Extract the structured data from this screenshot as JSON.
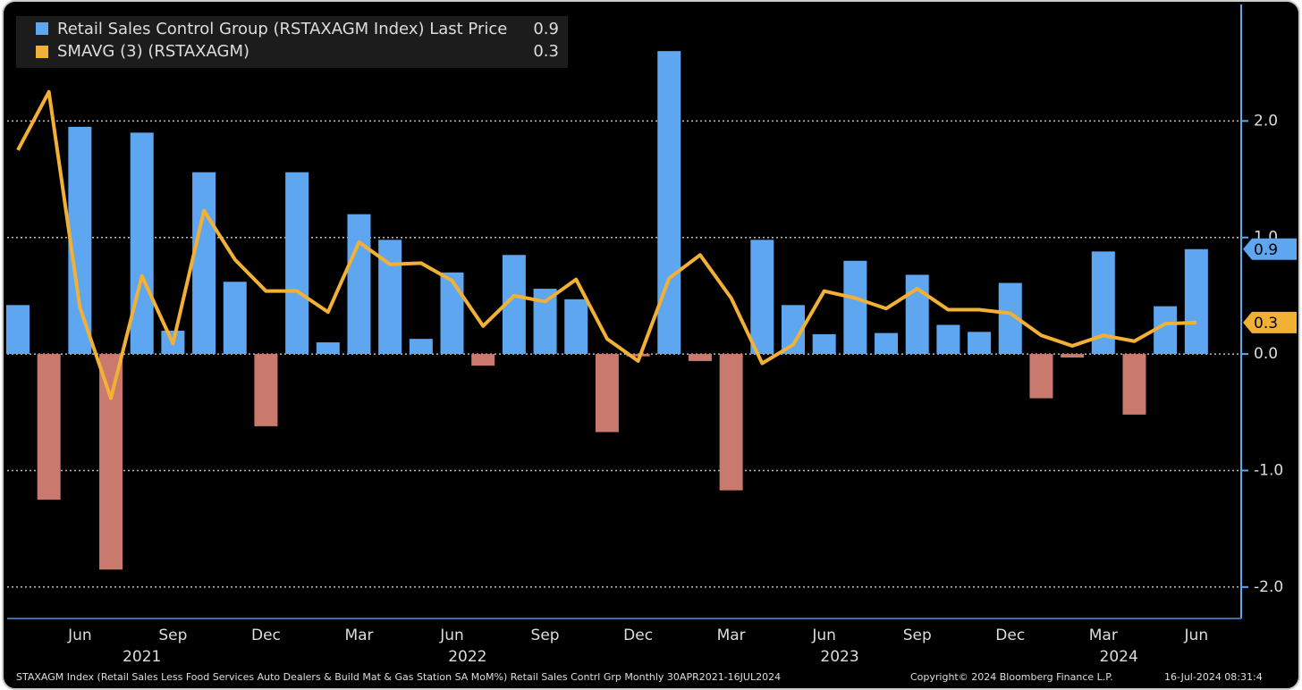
{
  "chart_data": {
    "type": "bar_line",
    "x": [
      "2021-04",
      "2021-05",
      "2021-06",
      "2021-07",
      "2021-08",
      "2021-09",
      "2021-10",
      "2021-11",
      "2021-12",
      "2022-01",
      "2022-02",
      "2022-03",
      "2022-04",
      "2022-05",
      "2022-06",
      "2022-07",
      "2022-08",
      "2022-09",
      "2022-10",
      "2022-11",
      "2022-12",
      "2023-01",
      "2023-02",
      "2023-03",
      "2023-04",
      "2023-05",
      "2023-06",
      "2023-07",
      "2023-08",
      "2023-09",
      "2023-10",
      "2023-11",
      "2023-12",
      "2024-01",
      "2024-02",
      "2024-03",
      "2024-04",
      "2024-05",
      "2024-06"
    ],
    "xticks": [
      {
        "value": "2021-06",
        "label": "Jun"
      },
      {
        "value": "2021-09",
        "label": "Sep"
      },
      {
        "value": "2021-12",
        "label": "Dec"
      },
      {
        "value": "2022-03",
        "label": "Mar"
      },
      {
        "value": "2022-06",
        "label": "Jun"
      },
      {
        "value": "2022-09",
        "label": "Sep"
      },
      {
        "value": "2022-12",
        "label": "Dec"
      },
      {
        "value": "2023-03",
        "label": "Mar"
      },
      {
        "value": "2023-06",
        "label": "Jun"
      },
      {
        "value": "2023-09",
        "label": "Sep"
      },
      {
        "value": "2023-12",
        "label": "Dec"
      },
      {
        "value": "2024-03",
        "label": "Mar"
      },
      {
        "value": "2024-06",
        "label": "Jun"
      }
    ],
    "year_labels": [
      "2021",
      "2022",
      "2023",
      "2024"
    ],
    "series": [
      {
        "name": "Retail Sales Control Group (RSTAXAGM Index) Last Price",
        "type": "bar",
        "color": "#5ea6f0",
        "negative_color": "#c9796d",
        "last_label": "0.9",
        "values": [
          0.42,
          -1.25,
          1.95,
          -1.85,
          1.9,
          0.2,
          1.56,
          0.62,
          -0.62,
          1.56,
          0.1,
          1.2,
          0.98,
          0.13,
          0.7,
          -0.1,
          0.85,
          0.56,
          0.47,
          -0.67,
          -0.02,
          2.6,
          -0.06,
          -1.17,
          0.98,
          0.42,
          0.17,
          0.8,
          0.18,
          0.68,
          0.25,
          0.19,
          0.61,
          -0.38,
          -0.03,
          0.88,
          -0.52,
          0.41,
          0.9
        ]
      },
      {
        "name": "SMAVG (3) (RSTAXAGM)",
        "type": "line",
        "color": "#f2b035",
        "last_label": "0.3",
        "values": [
          1.75,
          2.25,
          0.4,
          -0.38,
          0.67,
          0.09,
          1.23,
          0.81,
          0.54,
          0.54,
          0.36,
          0.96,
          0.77,
          0.78,
          0.63,
          0.24,
          0.5,
          0.45,
          0.64,
          0.13,
          -0.06,
          0.65,
          0.85,
          0.48,
          -0.08,
          0.08,
          0.54,
          0.48,
          0.39,
          0.56,
          0.38,
          0.38,
          0.35,
          0.16,
          0.07,
          0.16,
          0.11,
          0.26,
          0.27
        ]
      }
    ],
    "ylim": [
      -2.27,
      3.0
    ],
    "yticks": [
      {
        "value": 2,
        "label": "2.0"
      },
      {
        "value": 1,
        "label": "1.0"
      },
      {
        "value": 0,
        "label": "0.0"
      },
      {
        "value": -1,
        "label": "-1.0"
      },
      {
        "value": -2,
        "label": "-2.0"
      }
    ],
    "grid": true,
    "footer": {
      "source": "STAXAGM Index (Retail Sales Less Food Services Auto Dealers & Build Mat & Gas Station SA MoM%) Retail Sales Contrl Grp  Monthly 30APR2021-16JUL2024",
      "copyright": "Copyright© 2024 Bloomberg Finance L.P.",
      "timestamp": "16-Jul-2024 08:31:4"
    }
  }
}
